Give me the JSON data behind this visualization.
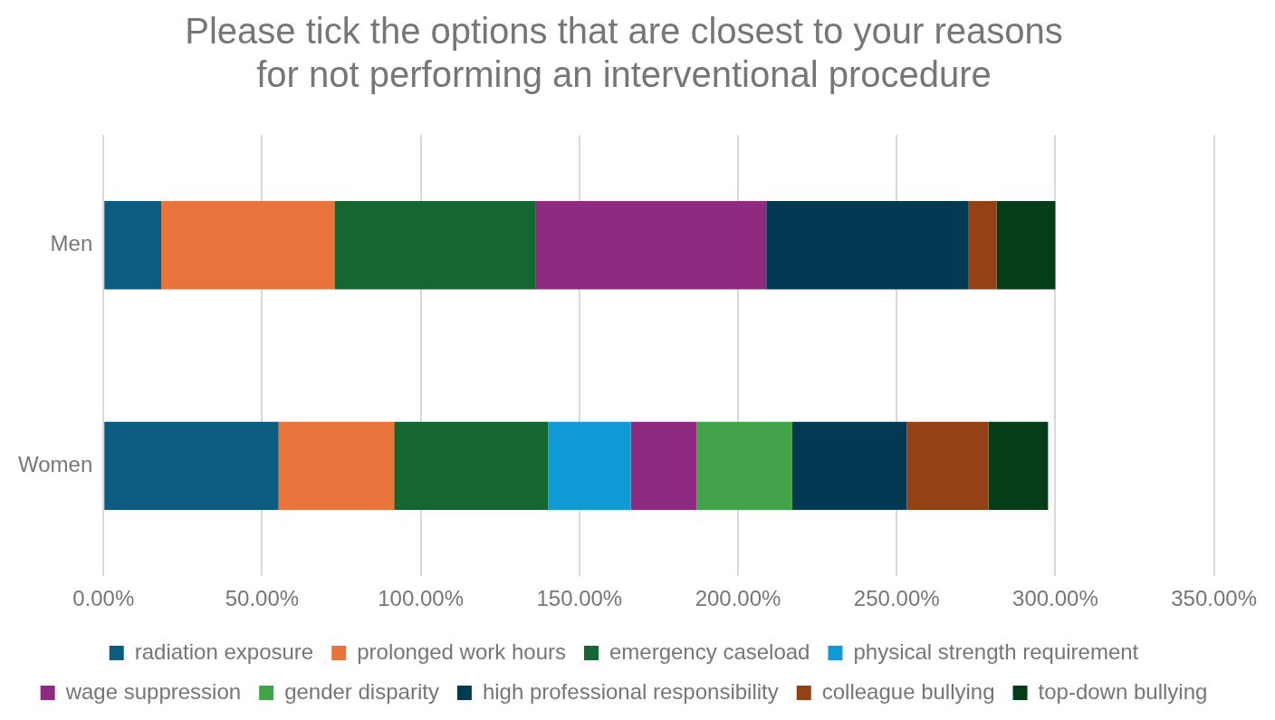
{
  "chart_data": {
    "type": "bar",
    "orientation": "horizontal",
    "stacked": true,
    "title": "Please tick the options that are closest to your reasons\nfor not performing an interventional procedure",
    "categories": [
      "Men",
      "Women"
    ],
    "series": [
      {
        "name": "radiation exposure",
        "color": "#0b5c80",
        "values": [
          18.2,
          55.2
        ]
      },
      {
        "name": "prolonged work hours",
        "color": "#e8743b",
        "values": [
          54.6,
          36.4
        ]
      },
      {
        "name": "emergency caseload",
        "color": "#156630",
        "values": [
          63.3,
          48.6
        ]
      },
      {
        "name": "physical strength requirement",
        "color": "#0f9ad6",
        "values": [
          null,
          26.0
        ]
      },
      {
        "name": "wage suppression",
        "color": "#8e2a80",
        "values": [
          72.8,
          20.8
        ]
      },
      {
        "name": "gender disparity",
        "color": "#42a34a",
        "values": [
          null,
          30.1
        ]
      },
      {
        "name": "high professional responsibility",
        "color": "#033a53",
        "values": [
          63.6,
          36.1
        ]
      },
      {
        "name": "colleague bullying",
        "color": "#934115",
        "values": [
          9.0,
          25.7
        ]
      },
      {
        "name": "top-down bullying",
        "color": "#053d18",
        "values": [
          18.5,
          18.8
        ]
      }
    ],
    "xlim": [
      0,
      350
    ],
    "xticks": [
      {
        "value": 0,
        "label": "0.00%"
      },
      {
        "value": 50,
        "label": "50.00%"
      },
      {
        "value": 100,
        "label": "100.00%"
      },
      {
        "value": 150,
        "label": "150.00%"
      },
      {
        "value": 200,
        "label": "200.00%"
      },
      {
        "value": 250,
        "label": "250.00%"
      },
      {
        "value": 300,
        "label": "300.00%"
      },
      {
        "value": 350,
        "label": "350.00%"
      }
    ],
    "grid": "x",
    "legend": "bottom"
  }
}
